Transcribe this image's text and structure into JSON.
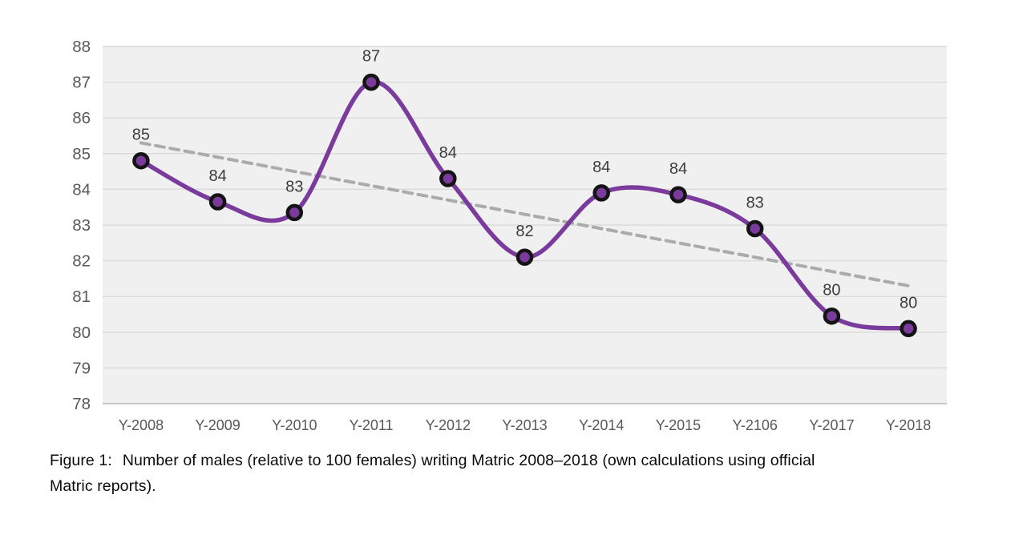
{
  "figure": {
    "caption": {
      "label": "Figure 1:",
      "line1": "Number of males (relative to 100 females) writing Matric 2008–2018 (own calculations using official",
      "line2": "Matric reports)."
    }
  },
  "chart_data": {
    "type": "line",
    "title": "",
    "xlabel": "",
    "ylabel": "",
    "categories": [
      "Y-2008",
      "Y-2009",
      "Y-2010",
      "Y-2011",
      "Y-2012",
      "Y-2013",
      "Y-2014",
      "Y-2015",
      "Y-2106",
      "Y-2017",
      "Y-2018"
    ],
    "series": [
      {
        "values": [
          84.8,
          83.65,
          83.35,
          87.0,
          84.3,
          82.1,
          83.9,
          83.85,
          82.9,
          80.45,
          80.1
        ],
        "point_labels": [
          "85",
          "84",
          "83",
          "87",
          "84",
          "82",
          "84",
          "84",
          "83",
          "80",
          "80"
        ],
        "smooth": true,
        "markers": true
      }
    ],
    "trendline": {
      "type": "linear",
      "y_start": 85.3,
      "y_end": 81.3,
      "dashed": true
    },
    "ylim": [
      78,
      88
    ],
    "ytick_step": 1,
    "grid": "horizontal",
    "legend": "none"
  },
  "style": {
    "series_color": "#7A3B9D",
    "marker_fill": "#7A3B9D",
    "marker_stroke": "#141414",
    "trendline_color": "#ABABAB",
    "gridline_color": "#DBDBDB",
    "axisline_color": "#C6C6C6",
    "plot_bg": "#F0F0F0",
    "axis_label_color": "#595959",
    "data_label_color": "#3D3D3D",
    "caption_color": "#0B0B0B"
  }
}
